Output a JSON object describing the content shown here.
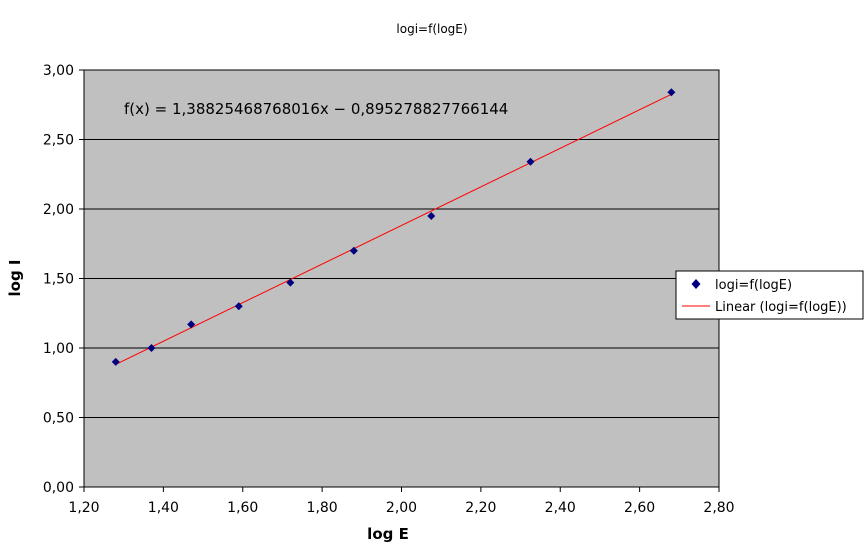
{
  "chart_data": {
    "type": "scatter",
    "title": "logi=f(logE)",
    "xlabel": "log E",
    "ylabel": "log I",
    "xlim": [
      1.2,
      2.8
    ],
    "ylim": [
      0,
      3
    ],
    "x_ticks": [
      "1,20",
      "1,40",
      "1,60",
      "1,80",
      "2,00",
      "2,20",
      "2,40",
      "2,60",
      "2,80"
    ],
    "y_ticks": [
      "0,00",
      "0,50",
      "1,00",
      "1,50",
      "2,00",
      "2,50",
      "3,00"
    ],
    "grid": "horizontal",
    "plot_background": "#c0c0c0",
    "series": [
      {
        "name": "logi=f(logE)",
        "marker": "diamond",
        "color": "#000080",
        "x": [
          1.28,
          1.37,
          1.47,
          1.59,
          1.72,
          1.88,
          2.075,
          2.325,
          2.68
        ],
        "y": [
          0.9,
          1.0,
          1.17,
          1.3,
          1.47,
          1.7,
          1.95,
          2.34,
          2.84
        ]
      }
    ],
    "trendline": {
      "name": "Linear (logi=f(logE))",
      "color": "#ff0000",
      "slope": 1.38825468768016,
      "intercept": -0.895278827766144,
      "x_range": [
        1.28,
        2.68
      ],
      "equation": "f(x) = 1,38825468768016x − 0,895278827766144"
    },
    "legend": {
      "placement": "right",
      "entries": [
        "logi=f(logE)",
        "Linear (logi=f(logE))"
      ]
    }
  }
}
